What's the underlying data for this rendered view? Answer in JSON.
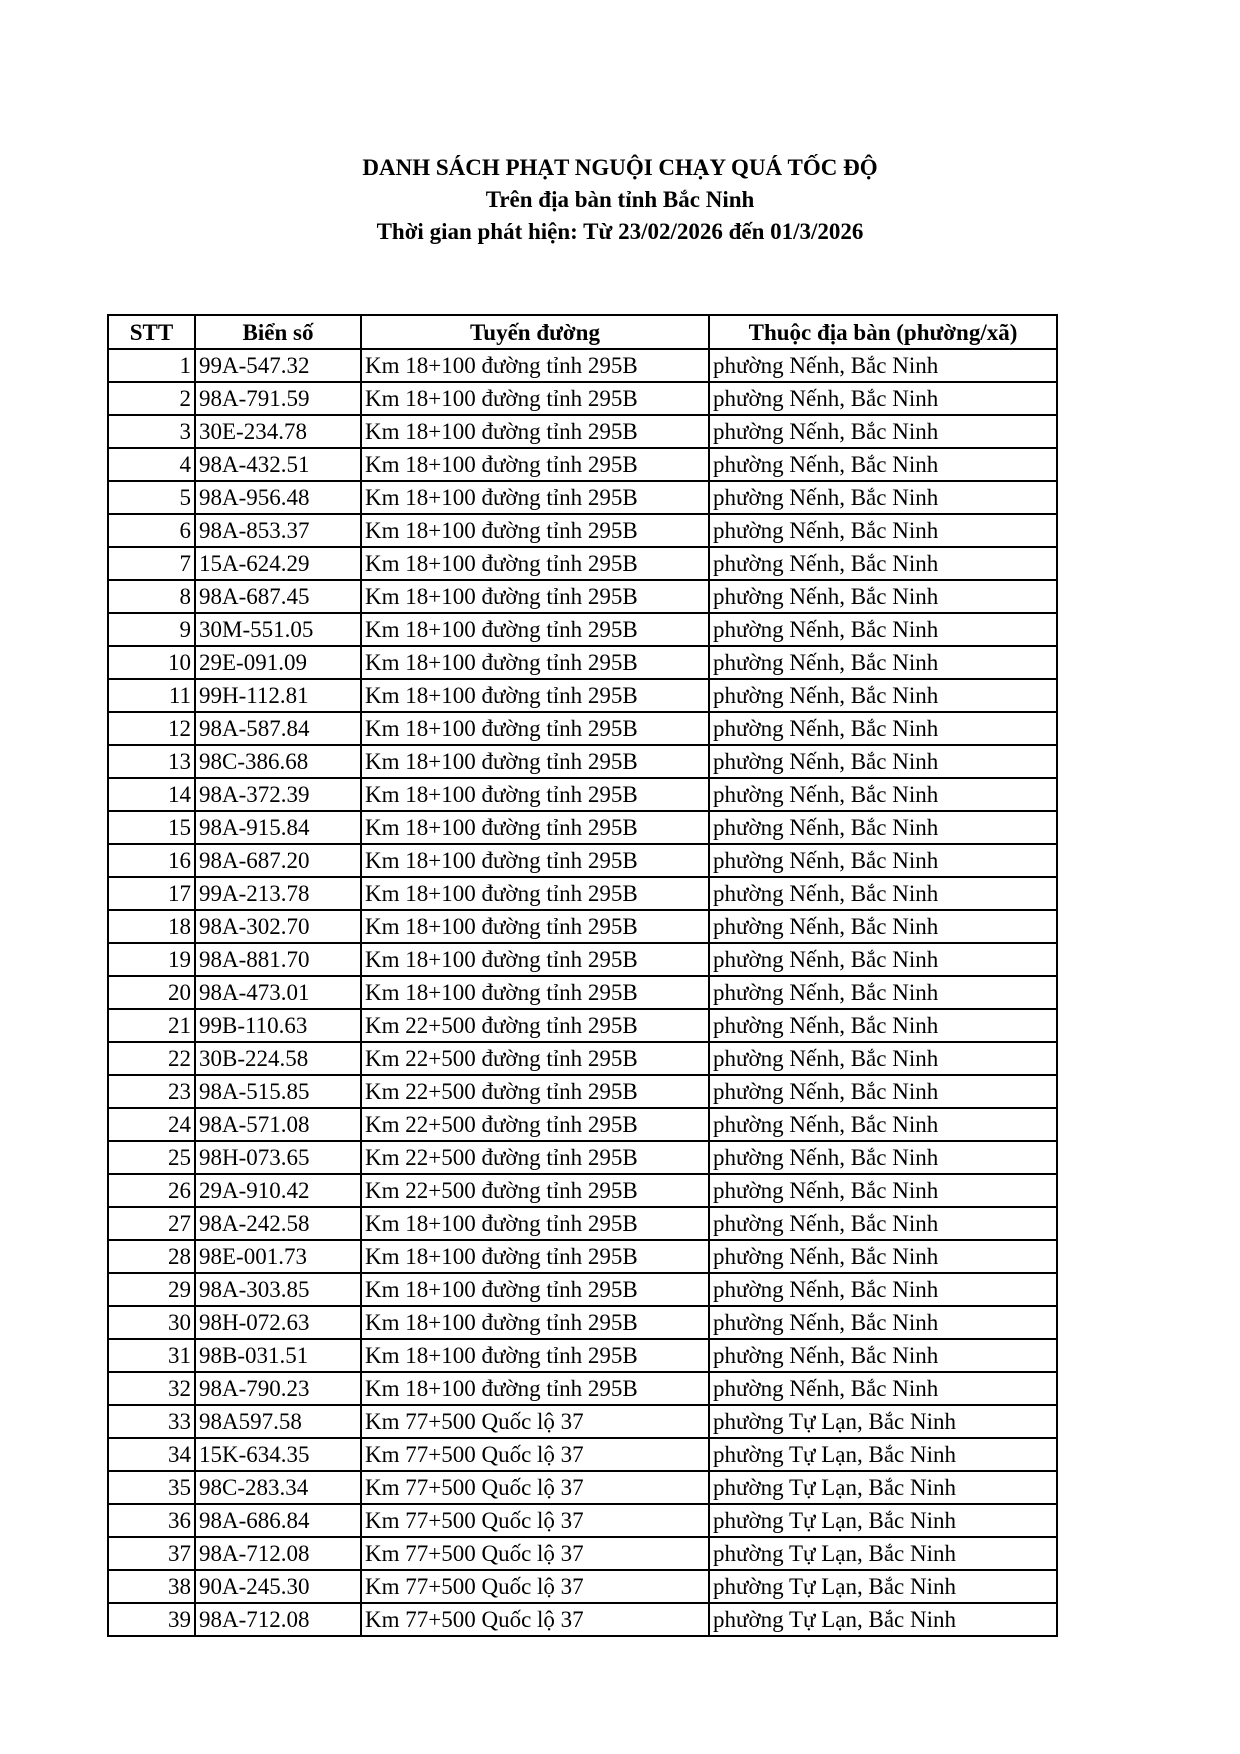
{
  "title": {
    "line1": "DANH SÁCH PHẠT NGUỘI CHẠY QUÁ TỐC ĐỘ",
    "line2": "Trên địa bàn tỉnh Bắc Ninh",
    "line3": "Thời gian phát hiện: Từ 23/02/2026 đến 01/3/2026"
  },
  "table": {
    "headers": [
      "STT",
      "Biển số",
      "Tuyến đường",
      "Thuộc địa bàn (phường/xã)"
    ],
    "rows": [
      [
        "1",
        "99A-547.32",
        "Km 18+100 đường tỉnh 295B",
        "phường Nếnh, Bắc Ninh"
      ],
      [
        "2",
        "98A-791.59",
        "Km 18+100 đường tỉnh 295B",
        "phường Nếnh, Bắc Ninh"
      ],
      [
        "3",
        "30E-234.78",
        "Km 18+100 đường tỉnh 295B",
        "phường Nếnh, Bắc Ninh"
      ],
      [
        "4",
        "98A-432.51",
        "Km 18+100 đường tỉnh 295B",
        "phường Nếnh, Bắc Ninh"
      ],
      [
        "5",
        "98A-956.48",
        "Km 18+100 đường tỉnh 295B",
        "phường Nếnh, Bắc Ninh"
      ],
      [
        "6",
        "98A-853.37",
        "Km 18+100 đường tỉnh 295B",
        "phường Nếnh, Bắc Ninh"
      ],
      [
        "7",
        "15A-624.29",
        "Km 18+100 đường tỉnh 295B",
        "phường Nếnh, Bắc Ninh"
      ],
      [
        "8",
        "98A-687.45",
        "Km 18+100 đường tỉnh 295B",
        "phường Nếnh, Bắc Ninh"
      ],
      [
        "9",
        "30M-551.05",
        "Km 18+100 đường tỉnh 295B",
        "phường Nếnh, Bắc Ninh"
      ],
      [
        "10",
        "29E-091.09",
        "Km 18+100 đường tỉnh 295B",
        "phường Nếnh, Bắc Ninh"
      ],
      [
        "11",
        "99H-112.81",
        "Km 18+100 đường tỉnh 295B",
        "phường Nếnh, Bắc Ninh"
      ],
      [
        "12",
        "98A-587.84",
        "Km 18+100 đường tỉnh 295B",
        "phường Nếnh, Bắc Ninh"
      ],
      [
        "13",
        "98C-386.68",
        "Km 18+100 đường tỉnh 295B",
        "phường Nếnh, Bắc Ninh"
      ],
      [
        "14",
        "98A-372.39",
        "Km 18+100 đường tỉnh 295B",
        "phường Nếnh, Bắc Ninh"
      ],
      [
        "15",
        "98A-915.84",
        "Km 18+100 đường tỉnh 295B",
        "phường Nếnh, Bắc Ninh"
      ],
      [
        "16",
        "98A-687.20",
        "Km 18+100 đường tỉnh 295B",
        "phường Nếnh, Bắc Ninh"
      ],
      [
        "17",
        "99A-213.78",
        "Km 18+100 đường tỉnh 295B",
        "phường Nếnh, Bắc Ninh"
      ],
      [
        "18",
        "98A-302.70",
        "Km 18+100 đường tỉnh 295B",
        "phường Nếnh, Bắc Ninh"
      ],
      [
        "19",
        "98A-881.70",
        "Km 18+100 đường tỉnh 295B",
        "phường Nếnh, Bắc Ninh"
      ],
      [
        "20",
        "98A-473.01",
        "Km 18+100 đường tỉnh 295B",
        "phường Nếnh, Bắc Ninh"
      ],
      [
        "21",
        "99B-110.63",
        "Km 22+500 đường tỉnh 295B",
        "phường Nếnh, Bắc Ninh"
      ],
      [
        "22",
        "30B-224.58",
        "Km 22+500 đường tỉnh 295B",
        "phường Nếnh, Bắc Ninh"
      ],
      [
        "23",
        "98A-515.85",
        "Km 22+500 đường tỉnh 295B",
        "phường Nếnh, Bắc Ninh"
      ],
      [
        "24",
        "98A-571.08",
        "Km 22+500 đường tỉnh 295B",
        "phường Nếnh, Bắc Ninh"
      ],
      [
        "25",
        "98H-073.65",
        "Km 22+500 đường tỉnh 295B",
        "phường Nếnh, Bắc Ninh"
      ],
      [
        "26",
        "29A-910.42",
        "Km 22+500 đường tỉnh 295B",
        "phường Nếnh, Bắc Ninh"
      ],
      [
        "27",
        "98A-242.58",
        "Km 18+100 đường tỉnh 295B",
        "phường Nếnh, Bắc Ninh"
      ],
      [
        "28",
        "98E-001.73",
        "Km 18+100 đường tỉnh 295B",
        "phường Nếnh, Bắc Ninh"
      ],
      [
        "29",
        "98A-303.85",
        "Km 18+100 đường tỉnh 295B",
        "phường Nếnh, Bắc Ninh"
      ],
      [
        "30",
        "98H-072.63",
        "Km 18+100 đường tỉnh 295B",
        "phường Nếnh, Bắc Ninh"
      ],
      [
        "31",
        "98B-031.51",
        "Km 18+100 đường tỉnh 295B",
        "phường Nếnh, Bắc Ninh"
      ],
      [
        "32",
        "98A-790.23",
        "Km 18+100 đường tỉnh 295B",
        "phường Nếnh, Bắc Ninh"
      ],
      [
        "33",
        "98A597.58",
        "Km 77+500 Quốc lộ 37",
        "phường Tự Lạn, Bắc Ninh"
      ],
      [
        "34",
        "15K-634.35",
        "Km 77+500 Quốc lộ 37",
        "phường Tự Lạn, Bắc Ninh"
      ],
      [
        "35",
        "98C-283.34",
        "Km 77+500 Quốc lộ 37",
        "phường Tự Lạn, Bắc Ninh"
      ],
      [
        "36",
        "98A-686.84",
        "Km 77+500 Quốc lộ 37",
        "phường Tự Lạn, Bắc Ninh"
      ],
      [
        "37",
        "98A-712.08",
        "Km 77+500 Quốc lộ 37",
        "phường Tự Lạn, Bắc Ninh"
      ],
      [
        "38",
        "90A-245.30",
        "Km 77+500 Quốc lộ 37",
        "phường Tự Lạn, Bắc Ninh"
      ],
      [
        "39",
        "98A-712.08",
        "Km 77+500 Quốc lộ 37",
        "phường Tự Lạn, Bắc Ninh"
      ]
    ]
  }
}
